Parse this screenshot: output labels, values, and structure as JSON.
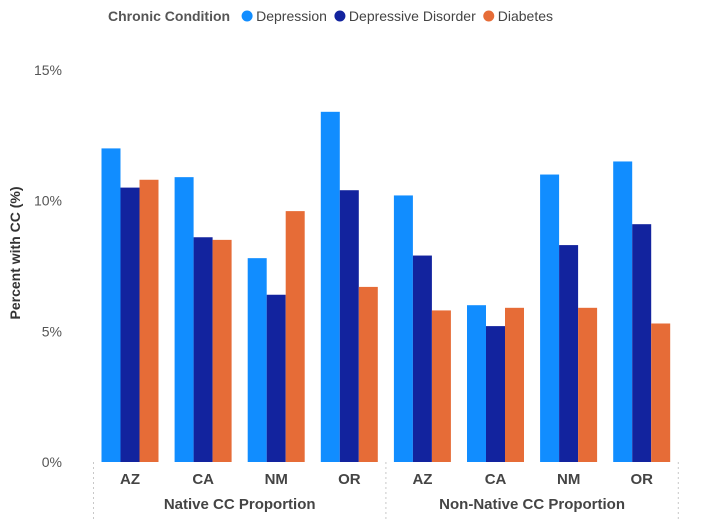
{
  "chart_data": {
    "type": "bar",
    "legend": {
      "title": "Chronic Condition",
      "placement": "top-left"
    },
    "series": [
      {
        "name": "Depression",
        "color": "#118dff",
        "values": [
          12.0,
          10.9,
          7.8,
          13.4,
          10.2,
          6.0,
          11.0,
          11.5
        ]
      },
      {
        "name": "Depressive Disorder",
        "color": "#12239e",
        "values": [
          10.5,
          8.6,
          6.4,
          10.4,
          7.9,
          5.2,
          8.3,
          9.1
        ]
      },
      {
        "name": "Diabetes",
        "color": "#e66c37",
        "values": [
          10.8,
          8.5,
          9.6,
          6.7,
          5.8,
          5.9,
          5.9,
          5.3
        ]
      }
    ],
    "groups": [
      {
        "label": "Native CC Proportion",
        "categories": [
          "AZ",
          "CA",
          "NM",
          "OR"
        ]
      },
      {
        "label": "Non-Native CC Proportion",
        "categories": [
          "AZ",
          "CA",
          "NM",
          "OR"
        ]
      }
    ],
    "ylabel": "Percent with CC (%)",
    "yticks": [
      "0%",
      "5%",
      "10%",
      "15%"
    ],
    "ytick_values": [
      0,
      5,
      10,
      15
    ],
    "ylim": [
      0,
      15
    ],
    "grid": false
  }
}
